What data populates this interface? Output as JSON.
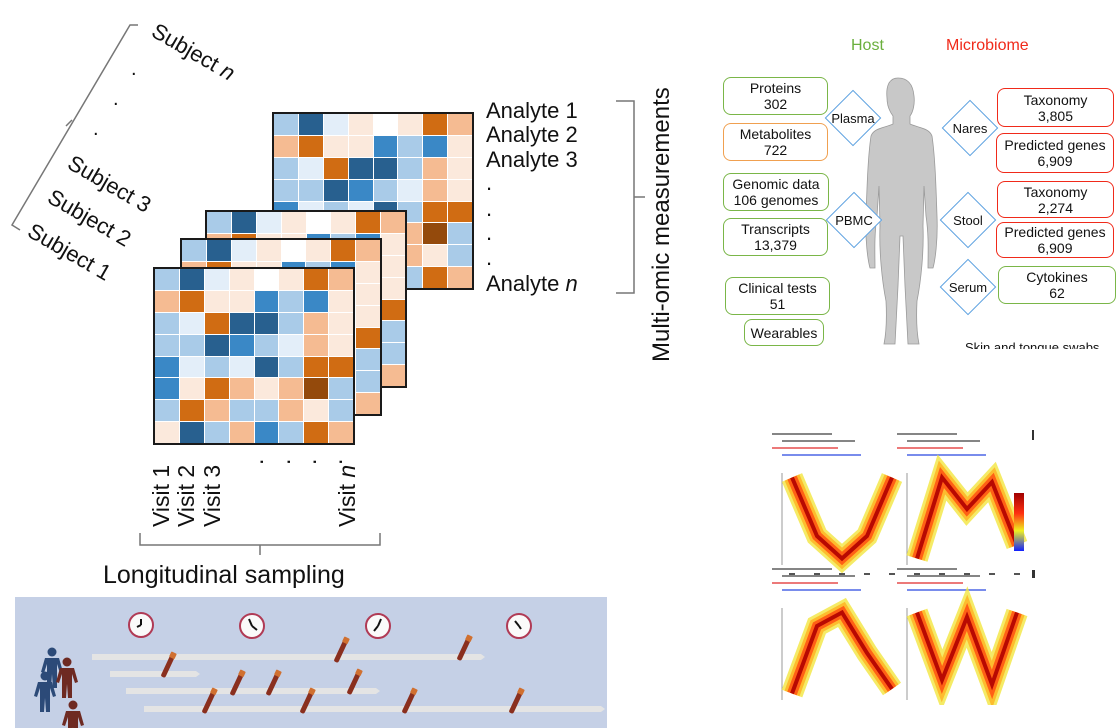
{
  "subjects": {
    "s_n": "Subject ",
    "s_n_italic": "n",
    "s3": "Subject 3",
    "s2": "Subject 2",
    "s1": "Subject 1",
    "dot": "."
  },
  "analytes": {
    "a1": "Analyte 1",
    "a2": "Analyte 2",
    "a3": "Analyte 3",
    "dot": ".",
    "an": "Analyte ",
    "an_italic": "n"
  },
  "visits": {
    "v1": "Visit 1",
    "v2": "Visit 2",
    "v3": "Visit 3",
    "dot": ".",
    "vn": "Visit ",
    "vn_italic": "n"
  },
  "longitudinal_label": "Longitudinal sampling",
  "multiomic_label": "Multi-omic measurements",
  "heatmap_levels": [
    [
      -2,
      -4,
      -1,
      1,
      0,
      1,
      3,
      2
    ],
    [
      2,
      3,
      1,
      1,
      -3,
      -2,
      -3,
      1
    ],
    [
      -2,
      -1,
      3,
      -4,
      -4,
      -2,
      2,
      1
    ],
    [
      -2,
      -2,
      -4,
      -3,
      -2,
      -1,
      2,
      1
    ],
    [
      -3,
      -1,
      -2,
      -1,
      -4,
      -2,
      3,
      3
    ],
    [
      -3,
      1,
      3,
      2,
      1,
      2,
      4,
      -2
    ],
    [
      -2,
      3,
      2,
      -2,
      -2,
      2,
      1,
      -2
    ],
    [
      1,
      -4,
      -2,
      2,
      -3,
      -2,
      3,
      2
    ]
  ],
  "heatmap_colors": {
    "-4": "#28608f",
    "-3": "#3a88c6",
    "-2": "#a9cbe8",
    "-1": "#e3eef9",
    "0": "#ffffff",
    "1": "#fbe9dc",
    "2": "#f5bb92",
    "3": "#d06c13",
    "4": "#944a0c"
  },
  "host": {
    "title": "Host",
    "color": "#6aaf3d",
    "boxes": [
      {
        "name": "Proteins",
        "value": "302"
      },
      {
        "name": "Metabolites",
        "value": "722"
      },
      {
        "name": "Genomic data",
        "value": "106 genomes"
      },
      {
        "name": "Transcripts",
        "value": "13,379"
      },
      {
        "name": "Clinical tests",
        "value": "51"
      },
      {
        "name": "Wearables"
      }
    ],
    "samples": [
      "Plasma",
      "PBMC"
    ]
  },
  "microbiome": {
    "title": "Microbiome",
    "color": "#f02a1a",
    "boxes": [
      {
        "name": "Taxonomy",
        "value": "3,805"
      },
      {
        "name": "Predicted genes",
        "value": "6,909"
      },
      {
        "name": "Taxonomy",
        "value": "2,274"
      },
      {
        "name": "Predicted genes",
        "value": "6,909"
      },
      {
        "name": "Cytokines",
        "value": "62"
      }
    ],
    "samples": [
      "Nares",
      "Stool",
      "Serum"
    ]
  },
  "truncated_caption": "Skin and tongue swabs",
  "panel_colors": {
    "background": "#c5d0e6",
    "bar": "#e4e4e4",
    "clock_ring": "#b03a55",
    "person_blue": "#2c4a78",
    "person_red": "#6e2a22",
    "tube": "#8a2f1e",
    "tube_cap": "#d07030"
  }
}
